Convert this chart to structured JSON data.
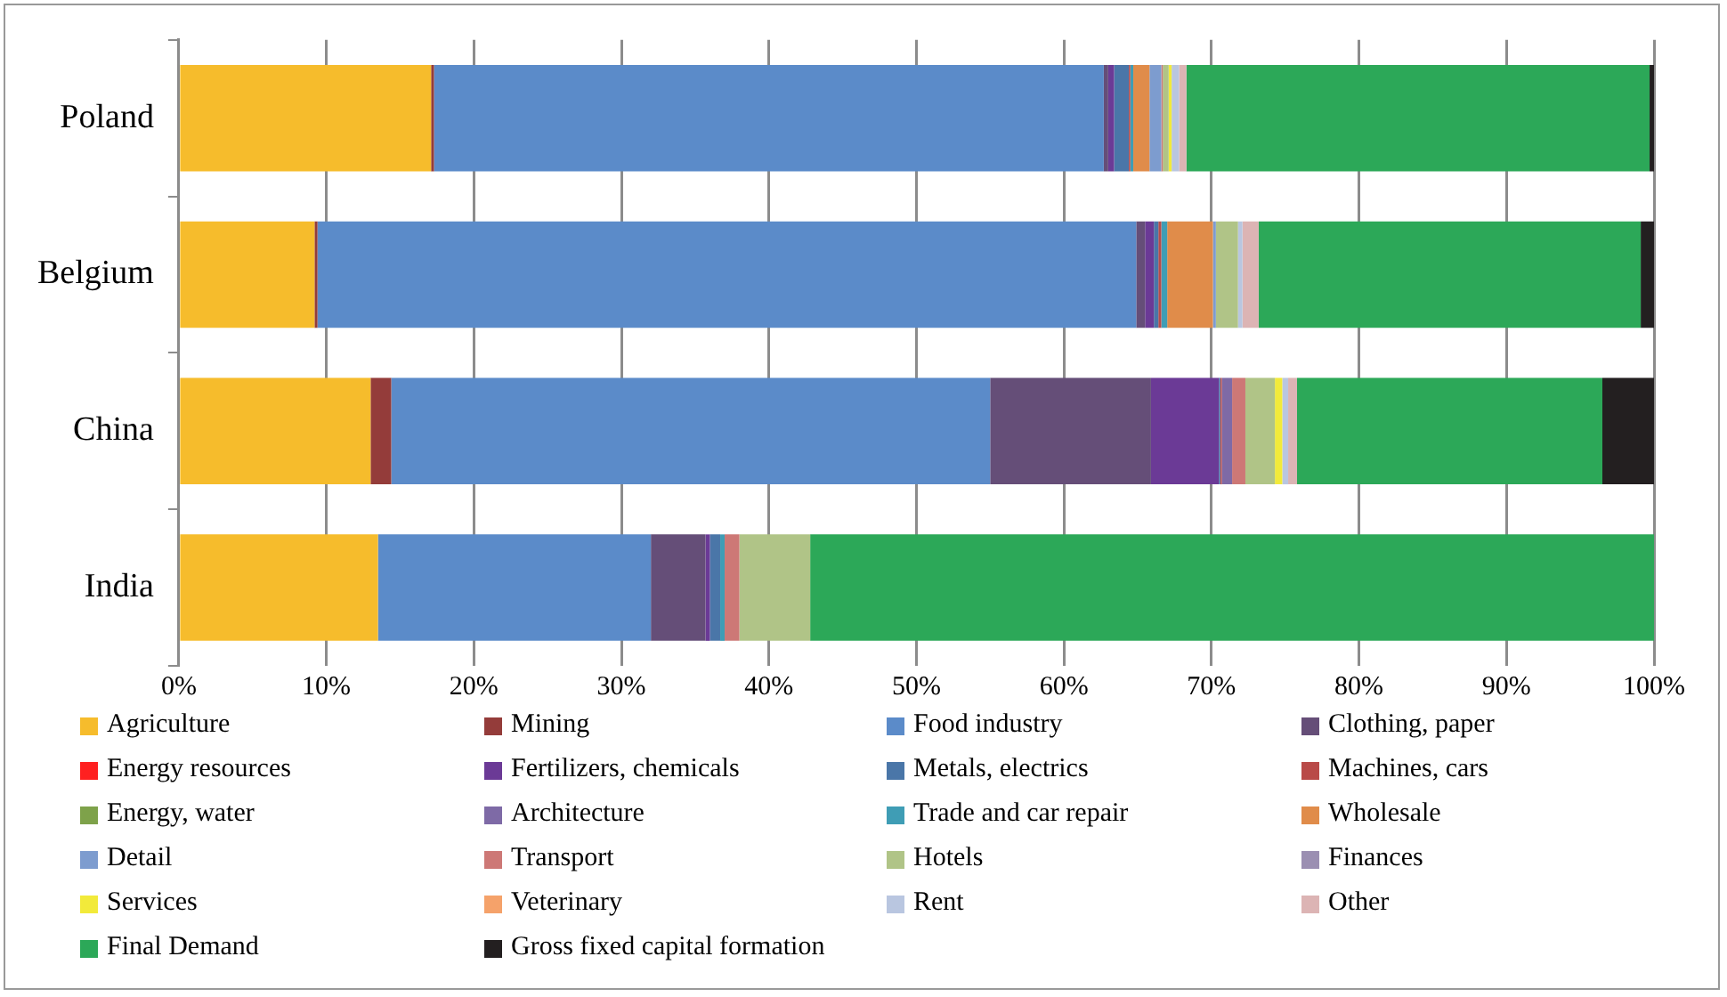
{
  "chart_data": {
    "type": "bar",
    "orientation": "horizontal",
    "stacked": true,
    "grid": "x",
    "legend": "bottom",
    "categories": [
      "Poland",
      "Belgium",
      "China",
      "India"
    ],
    "xlim": [
      0,
      100
    ],
    "xticks": [
      {
        "value": 0,
        "label": "0%"
      },
      {
        "value": 10,
        "label": "10%"
      },
      {
        "value": 20,
        "label": "20%"
      },
      {
        "value": 30,
        "label": "30%"
      },
      {
        "value": 40,
        "label": "40%"
      },
      {
        "value": 50,
        "label": "50%"
      },
      {
        "value": 60,
        "label": "60%"
      },
      {
        "value": 70,
        "label": "70%"
      },
      {
        "value": 80,
        "label": "80%"
      },
      {
        "value": 90,
        "label": "90%"
      },
      {
        "value": 100,
        "label": "100%"
      }
    ],
    "series": [
      {
        "name": "Agriculture",
        "color": "#f6bc2c",
        "values": [
          17.1,
          9.2,
          13.0,
          13.5
        ]
      },
      {
        "name": "Mining",
        "color": "#943c3a",
        "values": [
          0.2,
          0.2,
          1.4,
          null
        ]
      },
      {
        "name": "Food industry",
        "color": "#5b8bc9",
        "values": [
          45.4,
          55.5,
          40.6,
          18.5
        ]
      },
      {
        "name": "Clothing, paper",
        "color": "#654e78",
        "values": [
          0.3,
          0.6,
          10.9,
          3.7
        ]
      },
      {
        "name": "Energy resources",
        "color": "#ff2020",
        "values": [
          null,
          null,
          null,
          null
        ]
      },
      {
        "name": "Fertilizers, chemicals",
        "color": "#6b3a96",
        "values": [
          0.4,
          0.6,
          4.6,
          0.3
        ]
      },
      {
        "name": "Metals, electrics",
        "color": "#4a76a8",
        "values": [
          1.0,
          0.3,
          0.1,
          0.7
        ]
      },
      {
        "name": "Machines, cars",
        "color": "#b94a48",
        "values": [
          0.1,
          0.2,
          0.1,
          null
        ]
      },
      {
        "name": "Energy, water",
        "color": "#7ea24a",
        "values": [
          null,
          null,
          null,
          null
        ]
      },
      {
        "name": "Architecture",
        "color": "#7e6aa6",
        "values": [
          null,
          null,
          0.7,
          null
        ]
      },
      {
        "name": "Trade and car repair",
        "color": "#3f9db5",
        "values": [
          0.2,
          0.4,
          null,
          0.3
        ]
      },
      {
        "name": "Wholesale",
        "color": "#e08c4a",
        "values": [
          1.1,
          3.1,
          null,
          null
        ]
      },
      {
        "name": "Detail",
        "color": "#7d9ccf",
        "values": [
          0.8,
          0.2,
          null,
          null
        ]
      },
      {
        "name": "Transport",
        "color": "#cd7876",
        "values": [
          0.1,
          null,
          0.9,
          1.0
        ]
      },
      {
        "name": "Hotels",
        "color": "#b0c487",
        "values": [
          0.4,
          1.5,
          2.0,
          4.8
        ]
      },
      {
        "name": "Finances",
        "color": "#9b8fb2",
        "values": [
          null,
          null,
          null,
          null
        ]
      },
      {
        "name": "Services",
        "color": "#f2ea3a",
        "values": [
          0.2,
          null,
          0.5,
          null
        ]
      },
      {
        "name": "Veterinary",
        "color": "#f5a26a",
        "values": [
          null,
          null,
          null,
          null
        ]
      },
      {
        "name": "Rent",
        "color": "#b9c6e0",
        "values": [
          0.5,
          0.3,
          0.4,
          null
        ]
      },
      {
        "name": "Other",
        "color": "#dcb4b4",
        "values": [
          0.5,
          1.1,
          0.6,
          null
        ]
      },
      {
        "name": "Final Demand",
        "color": "#2ca858",
        "values": [
          31.4,
          25.9,
          20.7,
          57.2
        ]
      },
      {
        "name": "Gross fixed capital formation",
        "color": "#231f20",
        "values": [
          0.3,
          0.9,
          3.5,
          null
        ]
      }
    ]
  }
}
